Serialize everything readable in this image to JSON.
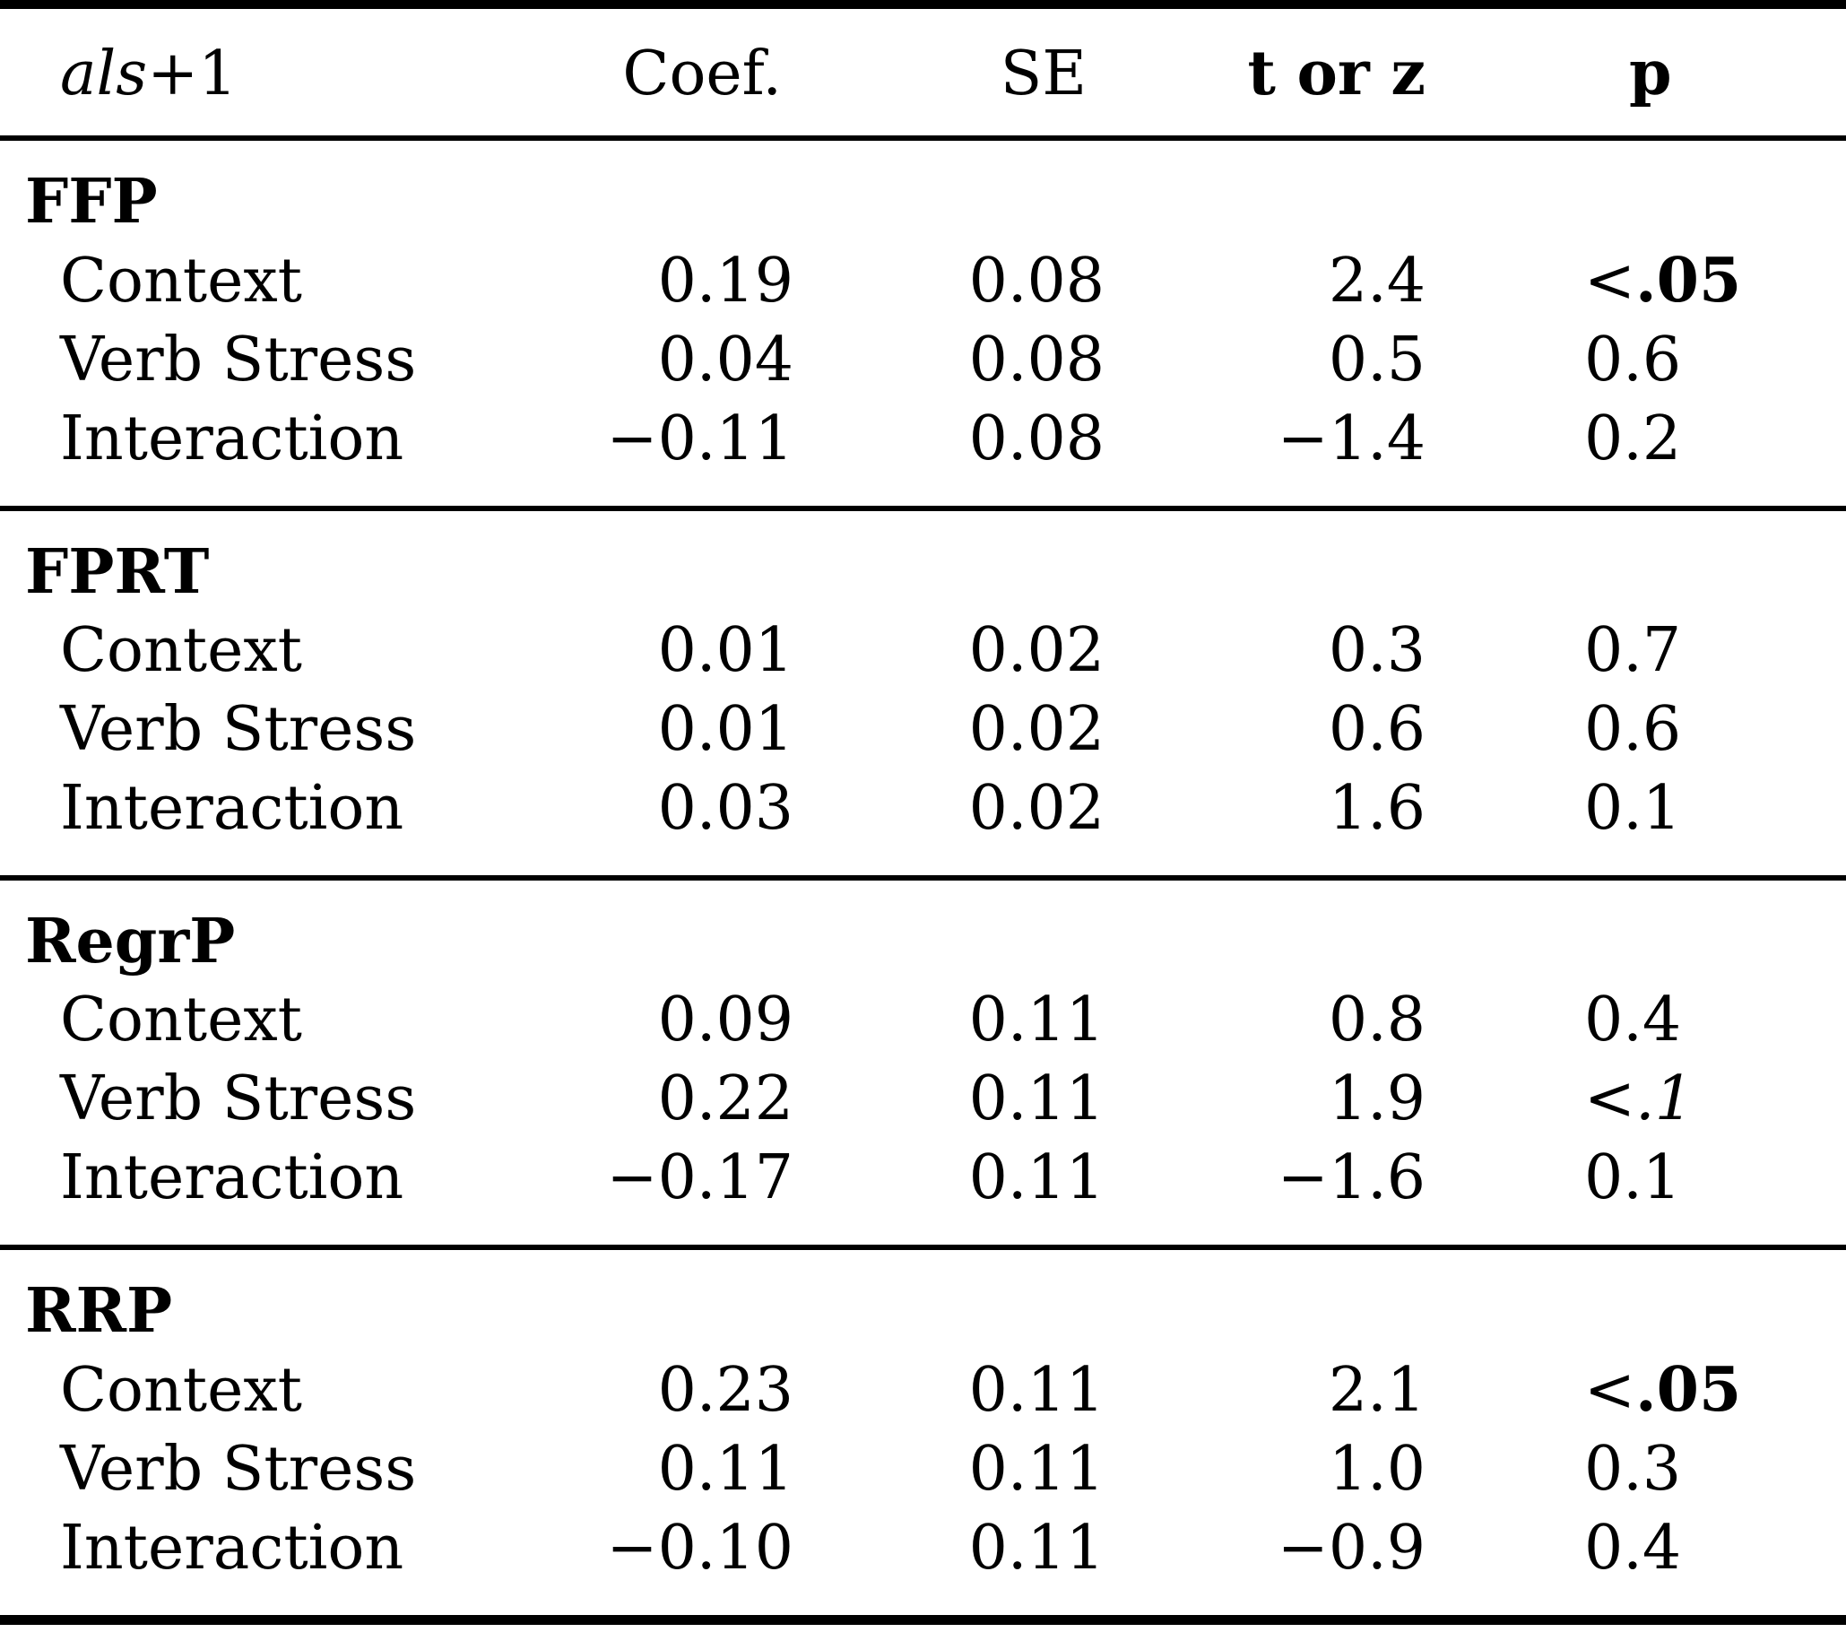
{
  "table": {
    "header": {
      "col1_italic": "als",
      "col1_rest": "+1",
      "coef": "Coef.",
      "se": "SE",
      "torz": "t or z",
      "p": "p"
    },
    "sections": [
      {
        "name": "FFP",
        "rows": [
          {
            "label": "Context",
            "coef": "0.19",
            "se": "0.08",
            "torz": "2.4",
            "p_lt": "<",
            "p_val": ".05",
            "p_style": "bold"
          },
          {
            "label": "Verb Stress",
            "coef": "0.04",
            "se": "0.08",
            "torz": "0.5",
            "p_lt": "",
            "p_val": "0.6",
            "p_style": ""
          },
          {
            "label": "Interaction",
            "coef": "−0.11",
            "se": "0.08",
            "torz": "−1.4",
            "p_lt": "",
            "p_val": "0.2",
            "p_style": ""
          }
        ]
      },
      {
        "name": "FPRT",
        "rows": [
          {
            "label": "Context",
            "coef": "0.01",
            "se": "0.02",
            "torz": "0.3",
            "p_lt": "",
            "p_val": "0.7",
            "p_style": ""
          },
          {
            "label": "Verb Stress",
            "coef": "0.01",
            "se": "0.02",
            "torz": "0.6",
            "p_lt": "",
            "p_val": "0.6",
            "p_style": ""
          },
          {
            "label": "Interaction",
            "coef": "0.03",
            "se": "0.02",
            "torz": "1.6",
            "p_lt": "",
            "p_val": "0.1",
            "p_style": ""
          }
        ]
      },
      {
        "name": "RegrP",
        "rows": [
          {
            "label": "Context",
            "coef": "0.09",
            "se": "0.11",
            "torz": "0.8",
            "p_lt": "",
            "p_val": "0.4",
            "p_style": ""
          },
          {
            "label": "Verb Stress",
            "coef": "0.22",
            "se": "0.11",
            "torz": "1.9",
            "p_lt": "<",
            "p_val": ".1",
            "p_style": "italic"
          },
          {
            "label": "Interaction",
            "coef": "−0.17",
            "se": "0.11",
            "torz": "−1.6",
            "p_lt": "",
            "p_val": "0.1",
            "p_style": ""
          }
        ]
      },
      {
        "name": "RRP",
        "rows": [
          {
            "label": "Context",
            "coef": "0.23",
            "se": "0.11",
            "torz": "2.1",
            "p_lt": "<",
            "p_val": ".05",
            "p_style": "bold"
          },
          {
            "label": "Verb Stress",
            "coef": "0.11",
            "se": "0.11",
            "torz": "1.0",
            "p_lt": "",
            "p_val": "0.3",
            "p_style": ""
          },
          {
            "label": "Interaction",
            "coef": "−0.10",
            "se": "0.11",
            "torz": "−0.9",
            "p_lt": "",
            "p_val": "0.4",
            "p_style": ""
          }
        ]
      }
    ]
  }
}
